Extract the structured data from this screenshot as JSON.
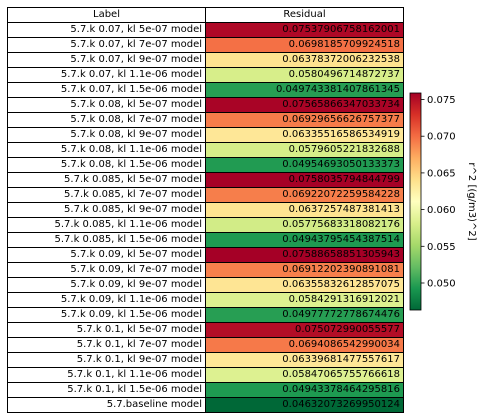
{
  "chart_data": {
    "type": "table",
    "columns": [
      "Label",
      "Residual"
    ],
    "rows": [
      {
        "label": "5.7.k 0.07, kl 5e-07 model",
        "residual": "0.07537906758162001",
        "value": 0.07537906758162001
      },
      {
        "label": "5.7.k 0.07, kl 7e-07 model",
        "residual": "0.0698185709924518",
        "value": 0.0698185709924518
      },
      {
        "label": "5.7.k 0.07, kl 9e-07 model",
        "residual": "0.06378372006232538",
        "value": 0.06378372006232538
      },
      {
        "label": "5.7.k 0.07, kl 1.1e-06 model",
        "residual": "0.0580496714872737",
        "value": 0.0580496714872737
      },
      {
        "label": "5.7.k 0.07, kl 1.5e-06 model",
        "residual": "0.049743381407861345",
        "value": 0.049743381407861345
      },
      {
        "label": "5.7.k 0.08, kl 5e-07 model",
        "residual": "0.07565866347033734",
        "value": 0.07565866347033734
      },
      {
        "label": "5.7.k 0.08, kl 7e-07 model",
        "residual": "0.06929656626757377",
        "value": 0.06929656626757377
      },
      {
        "label": "5.7.k 0.08, kl 9e-07 model",
        "residual": "0.06335516586534919",
        "value": 0.06335516586534919
      },
      {
        "label": "5.7.k 0.08, kl 1.1e-06 model",
        "residual": "0.0579605221832688",
        "value": 0.0579605221832688
      },
      {
        "label": "5.7.k 0.08, kl 1.5e-06 model",
        "residual": "0.04954693050133373",
        "value": 0.04954693050133373
      },
      {
        "label": "5.7.k 0.085, kl 5e-07 model",
        "residual": "0.0758035794844799",
        "value": 0.0758035794844799
      },
      {
        "label": "5.7.k 0.085, kl 7e-07 model",
        "residual": "0.06922072259584228",
        "value": 0.06922072259584228
      },
      {
        "label": "5.7.k 0.085, kl 9e-07 model",
        "residual": "0.0637257487381413",
        "value": 0.0637257487381413
      },
      {
        "label": "5.7.k 0.085, kl 1.1e-06 model",
        "residual": "0.05775683318082176",
        "value": 0.05775683318082176
      },
      {
        "label": "5.7.k 0.085, kl 1.5e-06 model",
        "residual": "0.04943795454387514",
        "value": 0.04943795454387514
      },
      {
        "label": "5.7.k 0.09, kl 5e-07 model",
        "residual": "0.07588658851305943",
        "value": 0.07588658851305943
      },
      {
        "label": "5.7.k 0.09, kl 7e-07 model",
        "residual": "0.06912202390891081",
        "value": 0.06912202390891081
      },
      {
        "label": "5.7.k 0.09, kl 9e-07 model",
        "residual": "0.06355832612857075",
        "value": 0.06355832612857075
      },
      {
        "label": "5.7.k 0.09, kl 1.1e-06 model",
        "residual": "0.0584291316912021",
        "value": 0.0584291316912021
      },
      {
        "label": "5.7.k 0.09, kl 1.5e-06 model",
        "residual": "0.04977772778674476",
        "value": 0.04977772778674476
      },
      {
        "label": "5.7.k 0.1, kl 5e-07 model",
        "residual": "0.075072990055577",
        "value": 0.075072990055577
      },
      {
        "label": "5.7.k 0.1, kl 7e-07 model",
        "residual": "0.0694086542990034",
        "value": 0.0694086542990034
      },
      {
        "label": "5.7.k 0.1, kl 9e-07 model",
        "residual": "0.06339681477557617",
        "value": 0.06339681477557617
      },
      {
        "label": "5.7.k 0.1, kl 1.1e-06 model",
        "residual": "0.05847065755766618",
        "value": 0.05847065755766618
      },
      {
        "label": "5.7.k 0.1, kl 1.5e-06 model",
        "residual": "0.04943378464295816",
        "value": 0.04943378464295816
      },
      {
        "label": "5.7.baseline model",
        "residual": "0.04632073269950124",
        "value": 0.04632073269950124
      }
    ],
    "colormap": [
      "#006837",
      "#1a9850",
      "#66bd63",
      "#a6d96a",
      "#d9ef8b",
      "#ffffbf",
      "#fee08b",
      "#fdae61",
      "#f46d43",
      "#d73027",
      "#a50026"
    ],
    "colorbar": {
      "label": "r^2 [(g/m3)^2]",
      "range": [
        0.04632073269950124,
        0.07588658851305943
      ],
      "ticks": [
        0.05,
        0.055,
        0.06,
        0.065,
        0.07,
        0.075
      ],
      "tick_labels": [
        "0.050",
        "0.055",
        "0.060",
        "0.065",
        "0.070",
        "0.075"
      ]
    }
  }
}
